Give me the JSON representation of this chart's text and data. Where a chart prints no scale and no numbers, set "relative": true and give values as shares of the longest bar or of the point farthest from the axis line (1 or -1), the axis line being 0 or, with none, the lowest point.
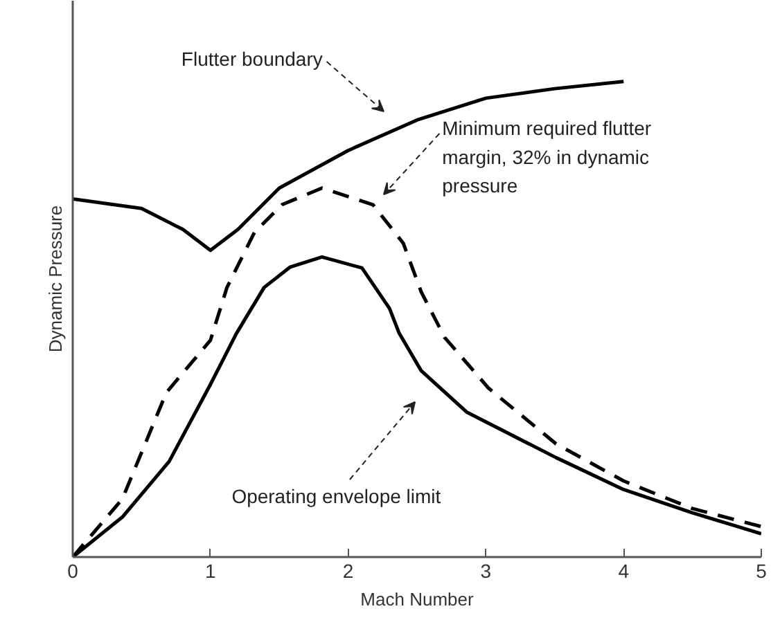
{
  "chart_data": {
    "type": "line",
    "relative": true,
    "xlabel": "Mach Number",
    "ylabel": "Dynamic Pressure",
    "xlim": [
      0,
      5
    ],
    "xticks": [
      0,
      1,
      2,
      3,
      4,
      5
    ],
    "series": [
      {
        "color": "#000000",
        "line_style": "solid",
        "x": [
          0,
          0.5,
          0.8,
          1.0,
          1.2,
          1.5,
          2.0,
          2.5,
          3.0,
          3.5,
          4.0
        ],
        "values": [
          0.753,
          0.733,
          0.689,
          0.645,
          0.689,
          0.776,
          0.855,
          0.919,
          0.965,
          0.985,
          1.0
        ]
      },
      {
        "color": "#000000",
        "line_style": "dashed",
        "x": [
          0,
          0.36,
          0.68,
          1.0,
          1.12,
          1.32,
          1.52,
          1.81,
          2.18,
          2.4,
          2.53,
          2.7,
          3.02,
          3.51,
          4.0,
          4.5,
          5.0
        ],
        "values": [
          0,
          0.122,
          0.346,
          0.456,
          0.567,
          0.683,
          0.741,
          0.776,
          0.741,
          0.66,
          0.558,
          0.462,
          0.355,
          0.238,
          0.16,
          0.102,
          0.064
        ]
      },
      {
        "color": "#000000",
        "line_style": "solid",
        "x": [
          0,
          0.36,
          0.7,
          1.0,
          1.19,
          1.39,
          1.58,
          1.81,
          2.1,
          2.3,
          2.37,
          2.53,
          2.86,
          3.51,
          4.0,
          4.5,
          5.0
        ],
        "values": [
          0,
          0.084,
          0.201,
          0.363,
          0.471,
          0.567,
          0.61,
          0.631,
          0.608,
          0.523,
          0.471,
          0.392,
          0.305,
          0.209,
          0.142,
          0.093,
          0.049
        ]
      }
    ],
    "annotations": [
      "Flutter boundary",
      "Minimum required flutter\nmargin, 32% in dynamic\npressure",
      "Operating envelope limit"
    ]
  }
}
